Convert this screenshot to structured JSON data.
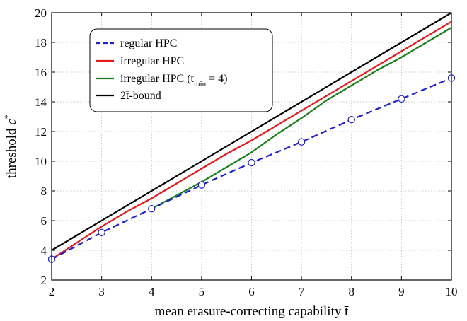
{
  "chart_data": {
    "type": "line",
    "xlabel": "mean erasure-correcting capability t̄",
    "ylabel": "threshold c*",
    "xlim": [
      2,
      10
    ],
    "ylim": [
      2,
      20
    ],
    "xticks": [
      2,
      3,
      4,
      5,
      6,
      7,
      8,
      9,
      10
    ],
    "yticks": [
      2,
      4,
      6,
      8,
      10,
      12,
      14,
      16,
      18,
      20
    ],
    "grid": true,
    "legend_position": "top-left",
    "series": [
      {
        "name": "regular HPC",
        "color": "#1f1fd0",
        "style": "dashed",
        "marker": "circle",
        "x": [
          2,
          3,
          4,
          5,
          6,
          7,
          8,
          9,
          10
        ],
        "y": [
          3.4,
          5.2,
          6.8,
          8.4,
          9.9,
          11.3,
          12.8,
          14.2,
          15.6
        ]
      },
      {
        "name": "irregular HPC",
        "color": "#e41a1c",
        "style": "solid",
        "x": [
          2,
          2.5,
          3,
          3.5,
          4,
          4.5,
          5,
          5.5,
          6,
          6.5,
          7,
          7.5,
          8,
          8.5,
          9,
          9.5,
          10
        ],
        "y": [
          3.4,
          4.5,
          5.6,
          6.6,
          7.5,
          8.5,
          9.5,
          10.5,
          11.4,
          12.4,
          13.4,
          14.4,
          15.4,
          16.4,
          17.4,
          18.4,
          19.4
        ]
      },
      {
        "name": "irregular HPC (t_min = 4)",
        "color": "#1a7f1a",
        "style": "solid",
        "x": [
          4,
          4.5,
          5,
          5.5,
          6,
          6.5,
          7,
          7.5,
          8,
          8.5,
          9,
          9.5,
          10
        ],
        "y": [
          6.8,
          7.7,
          8.6,
          9.6,
          10.6,
          11.8,
          12.9,
          14.1,
          15.1,
          16.1,
          17.0,
          18.0,
          19.0
        ]
      },
      {
        "name": "2t̄-bound",
        "color": "#000000",
        "style": "solid",
        "x": [
          2,
          10
        ],
        "y": [
          4,
          20
        ]
      }
    ]
  },
  "legend": {
    "items": [
      {
        "label": "regular HPC"
      },
      {
        "label": "irregular HPC"
      },
      {
        "label_prefix": "irregular HPC (t",
        "label_sub": "min",
        "label_suffix": " = 4)"
      },
      {
        "label": "2t̄-bound"
      }
    ]
  },
  "axes": {
    "xlabel": "mean erasure-correcting capability t̄",
    "ylabel_prefix": "threshold ",
    "ylabel_var": "c",
    "ylabel_sup": "*"
  }
}
